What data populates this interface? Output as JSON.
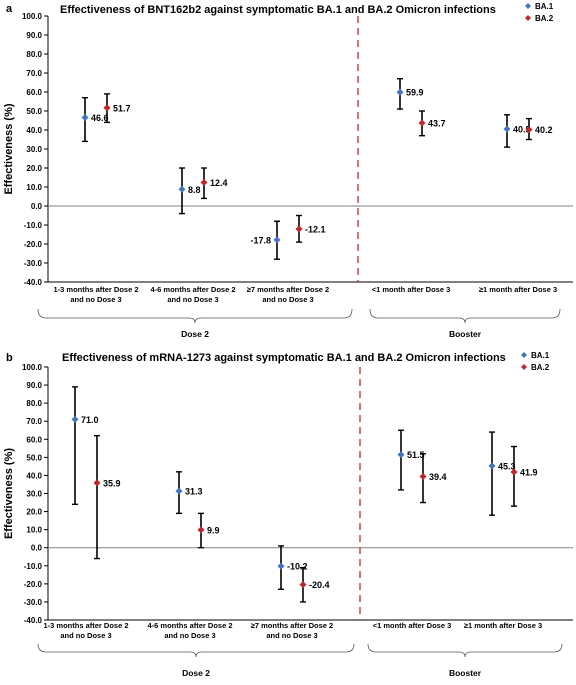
{
  "colors": {
    "ba1": "#4472c4",
    "ba2": "#c0282d",
    "error_bar": "#000000",
    "divider": "#c0282d",
    "axis": "#000000",
    "zero_line": "#808080"
  },
  "chart_data": [
    {
      "type": "scatter",
      "panel_letter": "a",
      "title": "Effectiveness of BNT162b2 against symptomatic BA.1 and BA.2 Omicron infections",
      "ylabel": "Effectiveness (%)",
      "ylim": [
        -40,
        100
      ],
      "ytick_step": 10,
      "ytick_labels": [
        "-40.0",
        "-30.0",
        "-20.0",
        "-10.0",
        "0.0",
        "10.0",
        "20.0",
        "30.0",
        "40.0",
        "50.0",
        "60.0",
        "70.0",
        "80.0",
        "90.0",
        "100.0"
      ],
      "categories": [
        [
          "1-3 months after Dose 2",
          "and no Dose 3"
        ],
        [
          "4-6 months after Dose 2",
          "and no Dose 3"
        ],
        [
          "≥7 months after Dose 2",
          "and no Dose 3"
        ],
        [
          "<1 month after Dose 3"
        ],
        [
          "≥1 month after Dose 3"
        ]
      ],
      "groups": [
        {
          "label": "Dose 2",
          "categories": [
            0,
            1,
            2
          ]
        },
        {
          "label": "Booster",
          "categories": [
            3,
            4
          ]
        }
      ],
      "legend_position": "top-right",
      "series": [
        {
          "name": "BA.1",
          "color": "#4472c4",
          "values": [
            46.6,
            8.8,
            -17.8,
            59.9,
            40.5
          ],
          "labels": [
            "46.6",
            "8.8",
            "-17.8",
            "59.9",
            "40.5"
          ],
          "lower": [
            34,
            -4,
            -28,
            51,
            31
          ],
          "upper": [
            57,
            20,
            -8,
            67,
            48
          ]
        },
        {
          "name": "BA.2",
          "color": "#c0282d",
          "values": [
            51.7,
            12.4,
            -12.1,
            43.7,
            40.2
          ],
          "labels": [
            "51.7",
            "12.4",
            "-12.1",
            "43.7",
            "40.2"
          ],
          "lower": [
            44,
            4,
            -19,
            37,
            35
          ],
          "upper": [
            59,
            20,
            -5,
            50,
            46
          ]
        }
      ]
    },
    {
      "type": "scatter",
      "panel_letter": "b",
      "title": "Effectiveness of mRNA-1273 against symptomatic BA.1 and BA.2 Omicron infections",
      "ylabel": "Effectiveness (%)",
      "ylim": [
        -40,
        100
      ],
      "ytick_step": 10,
      "ytick_labels": [
        "-40.0",
        "-30.0",
        "-20.0",
        "-10.0",
        "0.0",
        "10.0",
        "20.0",
        "30.0",
        "40.0",
        "50.0",
        "60.0",
        "70.0",
        "80.0",
        "90.0",
        "100.0"
      ],
      "categories": [
        [
          "1-3 months after Dose 2",
          "and no Dose 3"
        ],
        [
          "4-6 months after Dose 2",
          "and no Dose 3"
        ],
        [
          "≥7 months after Dose 2",
          "and no Dose 3"
        ],
        [
          "<1 month after Dose 3"
        ],
        [
          "≥1 month after Dose 3"
        ]
      ],
      "groups": [
        {
          "label": "Dose 2",
          "categories": [
            0,
            1,
            2
          ]
        },
        {
          "label": "Booster",
          "categories": [
            3,
            4
          ]
        }
      ],
      "legend_position": "top-right",
      "series": [
        {
          "name": "BA.1",
          "color": "#4472c4",
          "values": [
            71.0,
            31.3,
            -10.2,
            51.5,
            45.3
          ],
          "labels": [
            "71.0",
            "31.3",
            "-10.2",
            "51.5",
            "45.3"
          ],
          "lower": [
            24,
            19,
            -23,
            32,
            18
          ],
          "upper": [
            89,
            42,
            1,
            65,
            64
          ]
        },
        {
          "name": "BA.2",
          "color": "#c0282d",
          "values": [
            35.9,
            9.9,
            -20.4,
            39.4,
            41.9
          ],
          "labels": [
            "35.9",
            "9.9",
            "-20.4",
            "39.4",
            "41.9"
          ],
          "lower": [
            -6,
            0,
            -30,
            25,
            23
          ],
          "upper": [
            62,
            19,
            -11,
            52,
            56
          ]
        }
      ]
    }
  ]
}
